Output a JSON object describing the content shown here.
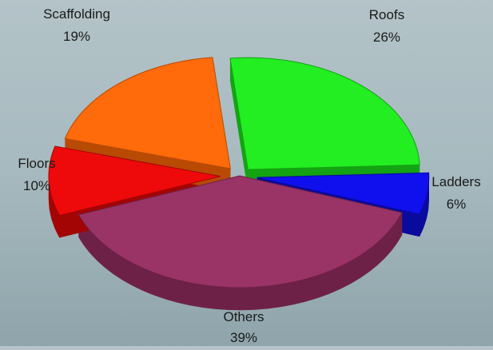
{
  "chart_data": {
    "type": "pie",
    "title": "",
    "slices": [
      {
        "label": "Roofs",
        "value": 26,
        "percent_label": "26%",
        "color": "#22ee22",
        "side_color": "#13a313"
      },
      {
        "label": "Ladders",
        "value": 6,
        "percent_label": "6%",
        "color": "#1010ee",
        "side_color": "#0a0a9c"
      },
      {
        "label": "Others",
        "value": 39,
        "percent_label": "39%",
        "color": "#9a3366",
        "side_color": "#6e2147"
      },
      {
        "label": "Floors",
        "value": 10,
        "percent_label": "10%",
        "color": "#ee0a0a",
        "side_color": "#a30505"
      },
      {
        "label": "Scaffolding",
        "value": 19,
        "percent_label": "19%",
        "color": "#ff6a0a",
        "side_color": "#b84a04"
      }
    ],
    "style": "3d-exploded",
    "legend": "none",
    "labels_position": "outside"
  }
}
